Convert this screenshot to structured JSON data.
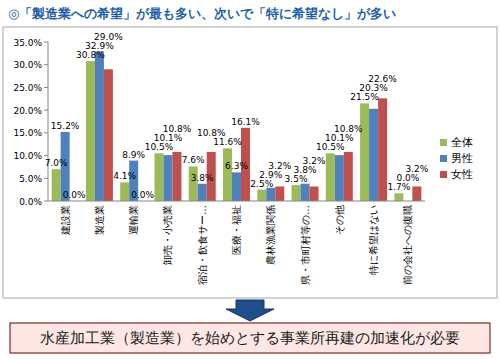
{
  "chart_data": {
    "type": "bar",
    "title": "◎「製造業への希望」が最も多い、次いで「特に希望なし」が多い",
    "annotations": [
      "水産加工業（製造業）を始めとする事業所再建の加速化が必要"
    ],
    "categories": [
      "建設業",
      "製造業",
      "運輸業",
      "卸売・小売業",
      "宿泊・飲食サー…",
      "医療・福祉",
      "農林漁業関係",
      "県・市町村等の…",
      "その他",
      "特に希望はない",
      "前の会社への復職"
    ],
    "series": [
      {
        "name": "全体",
        "color": "#9bbb59",
        "values": [
          7.0,
          30.8,
          4.1,
          10.5,
          7.6,
          11.6,
          2.5,
          3.5,
          10.5,
          21.5,
          1.7
        ],
        "value_labels": [
          "7.0%",
          "30.8%",
          "4.1%",
          "10.5%",
          "7.6%",
          "11.6%",
          "2.5%",
          "3.5%",
          "10.5%",
          "21.5%",
          "1.7%"
        ]
      },
      {
        "name": "男性",
        "color": "#4f81bd",
        "values": [
          15.2,
          32.9,
          8.9,
          10.1,
          3.8,
          6.3,
          2.9,
          3.8,
          10.1,
          20.3,
          0.0
        ],
        "value_labels": [
          "15.2%",
          "32.9%",
          "8.9%",
          "10.1%",
          "3.8%",
          "6.3%",
          "2.9%",
          "3.8%",
          "10.1%",
          "20.3%",
          "0.0%"
        ]
      },
      {
        "name": "女性",
        "color": "#c0504d",
        "values": [
          0.0,
          29.0,
          0.0,
          10.8,
          10.8,
          16.1,
          3.2,
          3.2,
          10.8,
          22.6,
          3.2
        ],
        "value_labels": [
          "0.0%",
          "29.0%",
          "0.0%",
          "10.8%",
          "10.8%",
          "16.1%",
          "3.2%",
          "3.2%",
          "10.8%",
          "22.6%",
          "3.2%"
        ]
      }
    ],
    "ylim": [
      0,
      35
    ],
    "yticks": [
      {
        "value": 0,
        "label": "0.0%"
      },
      {
        "value": 5,
        "label": "5.0%"
      },
      {
        "value": 10,
        "label": "10.0%"
      },
      {
        "value": 15,
        "label": "15.0%"
      },
      {
        "value": 20,
        "label": "20.0%"
      },
      {
        "value": 25,
        "label": "25.0%"
      },
      {
        "value": 30,
        "label": "30.0%"
      },
      {
        "value": 35,
        "label": "35.0%"
      }
    ],
    "grid": false,
    "legend": "right",
    "data_labels": true
  }
}
